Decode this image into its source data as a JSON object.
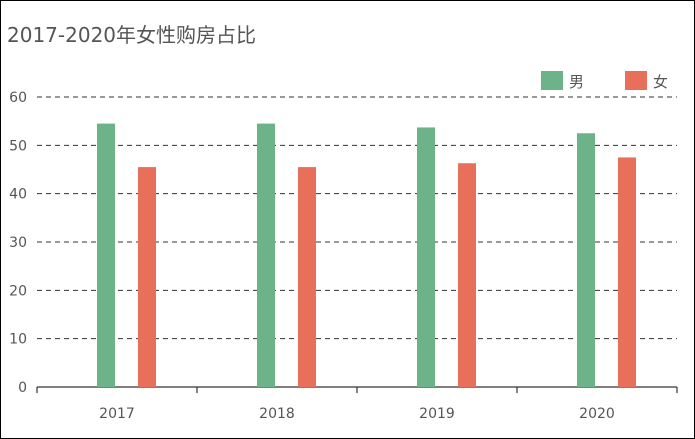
{
  "chart_data": {
    "type": "bar",
    "title": "2017-2020年女性购房占比",
    "categories": [
      "2017",
      "2018",
      "2019",
      "2020"
    ],
    "series": [
      {
        "name": "男",
        "values": [
          54.5,
          54.5,
          53.7,
          52.5
        ],
        "color": "#6db389"
      },
      {
        "name": "女",
        "values": [
          45.5,
          45.5,
          46.3,
          47.5
        ],
        "color": "#e8705a"
      }
    ],
    "yticks": [
      0,
      10,
      20,
      30,
      40,
      50,
      60
    ],
    "ylim": [
      0,
      60
    ],
    "grid": "dashed horizontal",
    "legend_position": "top-right"
  }
}
